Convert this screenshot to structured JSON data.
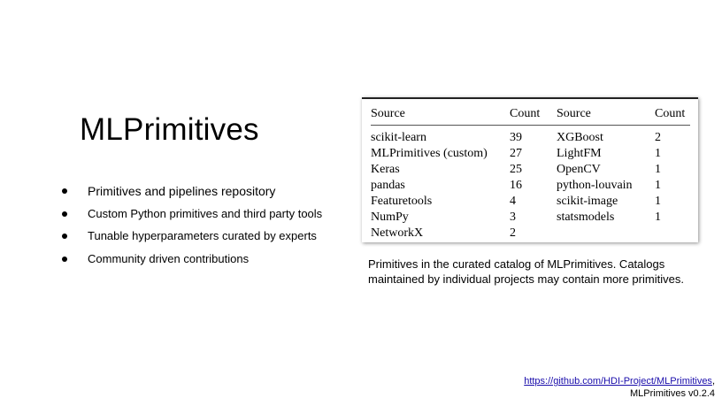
{
  "slide": {
    "title": "MLPrimitives",
    "bullets": [
      "Primitives and pipelines repository",
      "Custom Python primitives and third party tools",
      "Tunable hyperparameters curated by experts",
      "Community driven contributions"
    ]
  },
  "table": {
    "headers": [
      "Source",
      "Count",
      "Source",
      "Count"
    ],
    "rows": [
      [
        "scikit-learn",
        "39",
        "XGBoost",
        "2"
      ],
      [
        "MLPrimitives (custom)",
        "27",
        "LightFM",
        "1"
      ],
      [
        "Keras",
        "25",
        "OpenCV",
        "1"
      ],
      [
        "pandas",
        "16",
        "python-louvain",
        "1"
      ],
      [
        "Featuretools",
        "4",
        "scikit-image",
        "1"
      ],
      [
        "NumPy",
        "3",
        "statsmodels",
        "1"
      ],
      [
        "NetworkX",
        "2",
        "",
        ""
      ]
    ],
    "caption": "Primitives in the curated catalog of MLPrimitives. Catalogs maintained by individual projects may contain more primitives."
  },
  "footer": {
    "link_text": "https://github.com/HDI-Project/MLPrimitives",
    "link_suffix": ",",
    "version": "MLPrimitives v0.2.4"
  }
}
